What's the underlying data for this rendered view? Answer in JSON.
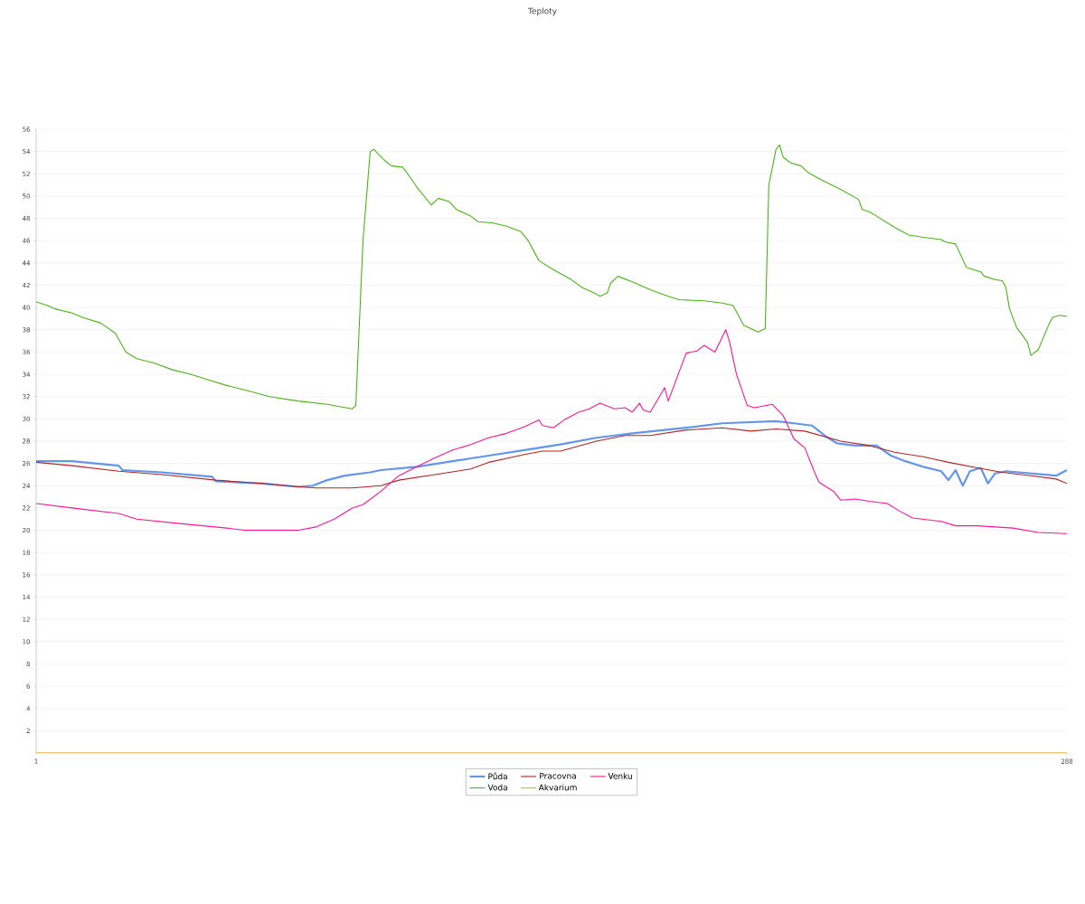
{
  "chart_data": {
    "type": "line",
    "title": "Teploty",
    "xlim": [
      1,
      288
    ],
    "xticks": [
      1,
      288
    ],
    "ylim": [
      0,
      56
    ],
    "yticks": [
      2,
      4,
      6,
      8,
      10,
      12,
      14,
      16,
      18,
      20,
      22,
      24,
      26,
      28,
      30,
      32,
      34,
      36,
      38,
      40,
      42,
      44,
      46,
      48,
      50,
      52,
      54,
      56
    ],
    "grid": "y",
    "legend": "bottom",
    "marker": "none",
    "line_style": "solid",
    "series": [
      {
        "name": "Půda",
        "color": "#6495ed",
        "x": [
          1,
          11,
          24,
          25,
          36,
          50,
          51,
          64,
          74,
          78,
          82,
          87,
          94,
          97,
          107,
          117,
          127,
          137,
          147,
          157,
          167,
          182,
          192,
          207,
          212,
          217,
          221,
          224,
          229,
          235,
          239,
          243,
          248,
          253,
          255,
          257,
          259,
          261,
          264,
          266,
          268,
          271,
          278,
          285,
          288
        ],
        "values": [
          26.2,
          26.2,
          25.8,
          25.4,
          25.2,
          24.8,
          24.4,
          24.2,
          23.9,
          24.0,
          24.5,
          24.9,
          25.2,
          25.4,
          25.7,
          26.2,
          26.7,
          27.2,
          27.7,
          28.3,
          28.7,
          29.2,
          29.6,
          29.8,
          29.6,
          29.4,
          28.4,
          27.8,
          27.6,
          27.6,
          26.7,
          26.2,
          25.7,
          25.3,
          24.5,
          25.4,
          24.0,
          25.3,
          25.6,
          24.2,
          25.1,
          25.3,
          25.1,
          24.9,
          25.4
        ]
      },
      {
        "name": "Pracovna",
        "color": "#b22222",
        "x": [
          1,
          11,
          24,
          36,
          51,
          64,
          74,
          79,
          89,
          97,
          102,
          112,
          122,
          127,
          137,
          142,
          147,
          157,
          165,
          172,
          182,
          192,
          200,
          207,
          215,
          225,
          233,
          240,
          248,
          255,
          263,
          270,
          278,
          285,
          288
        ],
        "values": [
          26.1,
          25.8,
          25.3,
          25.0,
          24.5,
          24.2,
          23.9,
          23.8,
          23.8,
          24.0,
          24.5,
          25.0,
          25.5,
          26.1,
          26.8,
          27.1,
          27.1,
          28.0,
          28.5,
          28.5,
          29.0,
          29.2,
          28.9,
          29.1,
          28.9,
          28.0,
          27.6,
          27.0,
          26.6,
          26.1,
          25.6,
          25.2,
          24.9,
          24.6,
          24.2
        ]
      },
      {
        "name": "Venku",
        "color": "#ff1493",
        "x": [
          1,
          11,
          24,
          29,
          41,
          54,
          59,
          74,
          79,
          84,
          89,
          92,
          97,
          102,
          107,
          112,
          117,
          122,
          127,
          132,
          137,
          141,
          142,
          145,
          148,
          152,
          155,
          158,
          162,
          165,
          167,
          169,
          170,
          172,
          176,
          177,
          180,
          182,
          185,
          187,
          190,
          193,
          194,
          196,
          199,
          201,
          206,
          209,
          212,
          215,
          218,
          219,
          223,
          225,
          229,
          233,
          238,
          241,
          245,
          253,
          257,
          263,
          273,
          280,
          288
        ],
        "values": [
          22.4,
          22.0,
          21.5,
          21.0,
          20.6,
          20.2,
          20.0,
          20.0,
          20.3,
          21.0,
          22.0,
          22.3,
          23.5,
          24.9,
          25.7,
          26.5,
          27.2,
          27.7,
          28.3,
          28.7,
          29.3,
          29.9,
          29.4,
          29.2,
          29.9,
          30.6,
          30.9,
          31.4,
          30.9,
          31.0,
          30.6,
          31.4,
          30.8,
          30.6,
          32.8,
          31.6,
          34.2,
          35.9,
          36.1,
          36.6,
          36.0,
          38.0,
          37.0,
          34.0,
          31.2,
          31.0,
          31.3,
          30.3,
          28.2,
          27.4,
          25.0,
          24.3,
          23.5,
          22.7,
          22.8,
          22.6,
          22.4,
          21.8,
          21.1,
          20.8,
          20.4,
          20.4,
          20.2,
          19.8,
          19.7
        ]
      },
      {
        "name": "Voda",
        "color": "#4cb317",
        "x": [
          1,
          4,
          6,
          11,
          14,
          19,
          23,
          26,
          29,
          34,
          39,
          44,
          49,
          54,
          59,
          66,
          74,
          82,
          89,
          90,
          92,
          94,
          95,
          98,
          100,
          103,
          104,
          107,
          111,
          113,
          116,
          118,
          122,
          124,
          128,
          132,
          136,
          138,
          141,
          145,
          150,
          153,
          157,
          158,
          160,
          161,
          163,
          167,
          172,
          177,
          180,
          187,
          192,
          195,
          198,
          202,
          204,
          205,
          207,
          208,
          209,
          211,
          214,
          216,
          220,
          225,
          230,
          231,
          233,
          235,
          240,
          244,
          248,
          253,
          254,
          257,
          259,
          260,
          264,
          265,
          268,
          270,
          271,
          272,
          274,
          277,
          278,
          280,
          283,
          284,
          286,
          288
        ],
        "values": [
          40.5,
          40.2,
          39.9,
          39.5,
          39.1,
          38.6,
          37.7,
          36.0,
          35.4,
          35.0,
          34.4,
          34.0,
          33.5,
          33.0,
          32.6,
          32.0,
          31.6,
          31.3,
          30.9,
          31.2,
          46.0,
          54.0,
          54.2,
          53.2,
          52.7,
          52.6,
          52.2,
          50.8,
          49.2,
          49.8,
          49.5,
          48.8,
          48.2,
          47.7,
          47.6,
          47.3,
          46.8,
          46.0,
          44.2,
          43.4,
          42.5,
          41.8,
          41.2,
          41.0,
          41.3,
          42.2,
          42.8,
          42.3,
          41.6,
          41.0,
          40.7,
          40.6,
          40.4,
          40.2,
          38.4,
          37.8,
          38.1,
          51.0,
          54.2,
          54.6,
          53.5,
          53.0,
          52.7,
          52.1,
          51.4,
          50.6,
          49.7,
          48.8,
          48.6,
          48.2,
          47.2,
          46.5,
          46.3,
          46.1,
          45.9,
          45.7,
          44.3,
          43.6,
          43.2,
          42.8,
          42.5,
          42.4,
          41.8,
          39.9,
          38.2,
          36.9,
          35.7,
          36.2,
          38.5,
          39.1,
          39.3,
          39.2
        ]
      },
      {
        "name": "Akvarium",
        "color": "#ffa500",
        "x": [
          1,
          288
        ],
        "values": [
          0,
          0
        ]
      }
    ]
  }
}
